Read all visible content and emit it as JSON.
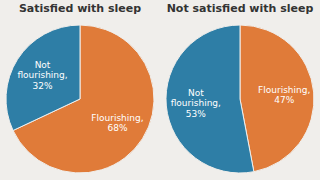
{
  "chart_data": [
    {
      "type": "pie",
      "title": "Satisfied with sleep",
      "values": [
        68,
        32
      ],
      "value_labels": [
        "Flourishing,\n68%",
        "Not\nflourishing,\n32%"
      ],
      "colors": [
        "#E07B39",
        "#2E7EA6"
      ]
    },
    {
      "type": "pie",
      "title": "Not satisfied with sleep",
      "values": [
        47,
        53
      ],
      "value_labels": [
        "Flourishing,\n47%",
        "Not\nflourishing,\n53%"
      ],
      "colors": [
        "#E07B39",
        "#2E7EA6"
      ]
    }
  ]
}
